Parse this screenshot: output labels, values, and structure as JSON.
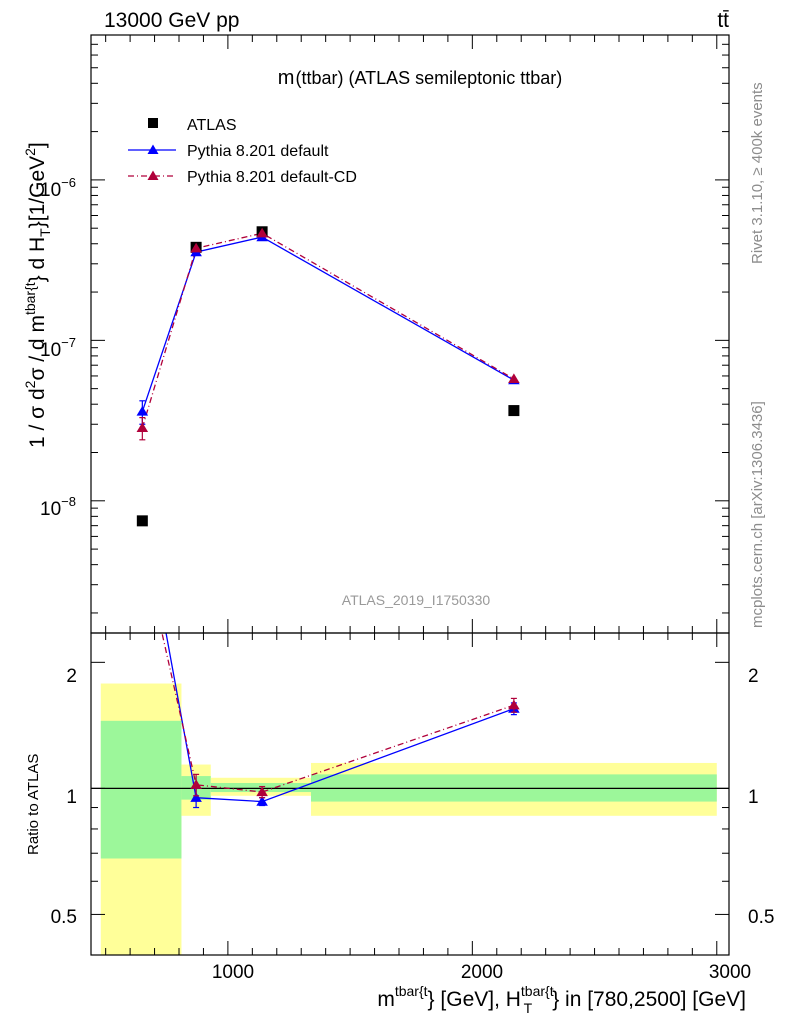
{
  "header": {
    "left": "13000 GeV pp",
    "right": "tt̄",
    "side_rivet": "Rivet 3.1.10, ≥ 400k events",
    "side_mcplots": "mcplots.cern.ch [arXiv:1306.3436]"
  },
  "colors": {
    "atlas": "#000000",
    "pythia_default": "#0000ff",
    "pythia_cd": "#b0003a",
    "band_inner": "#9cf79a",
    "band_outer": "#ffff99"
  },
  "chart_data": [
    {
      "type": "scatter",
      "title": "m(ttbar) (ATLAS semileptonic ttbar)",
      "title_parts": {
        "m": "m",
        "rest": "(ttbar) (ATLAS semileptonic ttbar)"
      },
      "analysis_label": "ATLAS_2019_I1750330",
      "yscale": "log",
      "xlim": [
        440,
        3050
      ],
      "ylim": [
        1.5e-09,
        8e-06
      ],
      "ylabel": {
        "pre": "1 / σ d",
        "sup2": "2",
        "mid": "σ / d m",
        "sup_t1": "tbar{t",
        "close1": "} d H",
        "sub_T": "T",
        "sup_t2": "tbar{t",
        "close2": "}",
        "unit": "[1/GeV",
        "unit_sup": "2",
        "unit_close": "]"
      },
      "yticks": [
        {
          "base": "10",
          "exp": "−8",
          "value": 1e-08
        },
        {
          "base": "10",
          "exp": "−7",
          "value": 1e-07
        },
        {
          "base": "10",
          "exp": "−6",
          "value": 1e-06
        }
      ],
      "legend_position": "top-left",
      "series": [
        {
          "name": "ATLAS",
          "marker": "square",
          "points": [
            {
              "x": 650,
              "y": 7.5e-09
            },
            {
              "x": 870,
              "y": 3.8e-07
            },
            {
              "x": 1140,
              "y": 4.75e-07
            },
            {
              "x": 2170,
              "y": 3.65e-08
            }
          ]
        },
        {
          "name": "Pythia 8.201 default",
          "marker": "triangle",
          "line": "solid",
          "points": [
            {
              "x": 650,
              "y": 3.6e-08,
              "err": 6e-09
            },
            {
              "x": 870,
              "y": 3.55e-07
            },
            {
              "x": 1140,
              "y": 4.4e-07
            },
            {
              "x": 2170,
              "y": 5.65e-08
            }
          ]
        },
        {
          "name": "Pythia 8.201 default-CD",
          "marker": "triangle",
          "line": "dashdot",
          "points": [
            {
              "x": 650,
              "y": 2.85e-08,
              "err": 4.5e-09
            },
            {
              "x": 870,
              "y": 3.75e-07
            },
            {
              "x": 1140,
              "y": 4.65e-07
            },
            {
              "x": 2170,
              "y": 5.75e-08
            }
          ]
        }
      ]
    },
    {
      "type": "line",
      "ylabel": "Ratio to ATLAS",
      "yscale": "log",
      "xlim": [
        440,
        3050
      ],
      "ylim": [
        0.4,
        2.35
      ],
      "xlabel": {
        "m": "m",
        "sup1": "tbar{t",
        "mid": "} [GeV], H",
        "sup2": "tbar{t",
        "sub": "T",
        "end": "} in [780,2500] [GeV]"
      },
      "xticks": [
        {
          "label": "1000",
          "value": 1000
        },
        {
          "label": "2000",
          "value": 2000
        },
        {
          "label": "3000",
          "value": 3000
        }
      ],
      "yticks": [
        {
          "label": "0.5",
          "value": 0.5
        },
        {
          "label": "1",
          "value": 1
        },
        {
          "label": "2",
          "value": 2
        }
      ],
      "bands": [
        {
          "x0": 480,
          "x1": 810,
          "inner": [
            0.68,
            1.45
          ],
          "outer": [
            0.4,
            1.78
          ]
        },
        {
          "x0": 810,
          "x1": 930,
          "inner": [
            0.94,
            1.07
          ],
          "outer": [
            0.86,
            1.14
          ]
        },
        {
          "x0": 930,
          "x1": 1340,
          "inner": [
            0.98,
            1.03
          ],
          "outer": [
            0.96,
            1.06
          ]
        },
        {
          "x0": 1340,
          "x1": 3000,
          "inner": [
            0.93,
            1.08
          ],
          "outer": [
            0.86,
            1.15
          ]
        }
      ],
      "series": [
        {
          "name": "Pythia 8.201 default",
          "marker": "triangle",
          "line": "solid",
          "points": [
            {
              "x": 650,
              "y": 4.8
            },
            {
              "x": 870,
              "y": 0.95,
              "err": 0.05
            },
            {
              "x": 1140,
              "y": 0.93,
              "err": 0.02
            },
            {
              "x": 2170,
              "y": 1.55,
              "err": 0.05
            }
          ]
        },
        {
          "name": "Pythia 8.201 default-CD",
          "marker": "triangle",
          "line": "dashdot",
          "points": [
            {
              "x": 650,
              "y": 3.8
            },
            {
              "x": 870,
              "y": 1.02,
              "err": 0.06
            },
            {
              "x": 1140,
              "y": 0.98,
              "err": 0.03
            },
            {
              "x": 2170,
              "y": 1.58,
              "err": 0.06
            }
          ]
        }
      ]
    }
  ]
}
